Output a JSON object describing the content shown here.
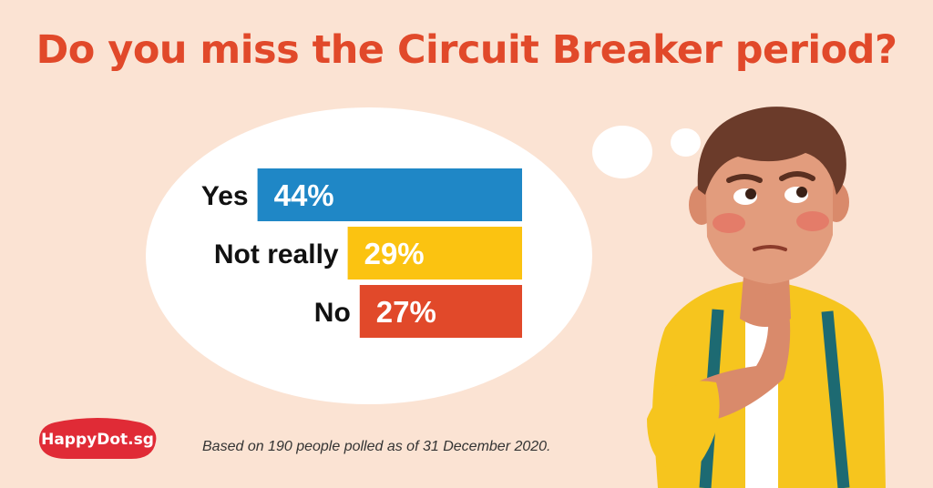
{
  "title": "Do you miss the Circuit Breaker period?",
  "colors": {
    "background": "#fbe3d3",
    "title": "#e1492a",
    "yes": "#1f87c6",
    "not_really": "#fbc311",
    "no": "#e1492a",
    "logo": "#e02b36"
  },
  "logo": {
    "text": "HappyDot.sg"
  },
  "footnote": "Based on 190 people polled as of 31 December 2020.",
  "chart_data": {
    "type": "bar",
    "orientation": "horizontal",
    "title": "Do you miss the Circuit Breaker period?",
    "categories": [
      "Yes",
      "Not really",
      "No"
    ],
    "values": [
      44,
      29,
      27
    ],
    "value_labels": [
      "44%",
      "29%",
      "27%"
    ],
    "unit": "%",
    "colors": [
      "#1f87c6",
      "#fbc311",
      "#e1492a"
    ],
    "bar_alignment": "right",
    "grid": false,
    "legend": "none"
  },
  "illustration": {
    "subject": "thinking man with hand on chin",
    "thought_bubble": true
  }
}
